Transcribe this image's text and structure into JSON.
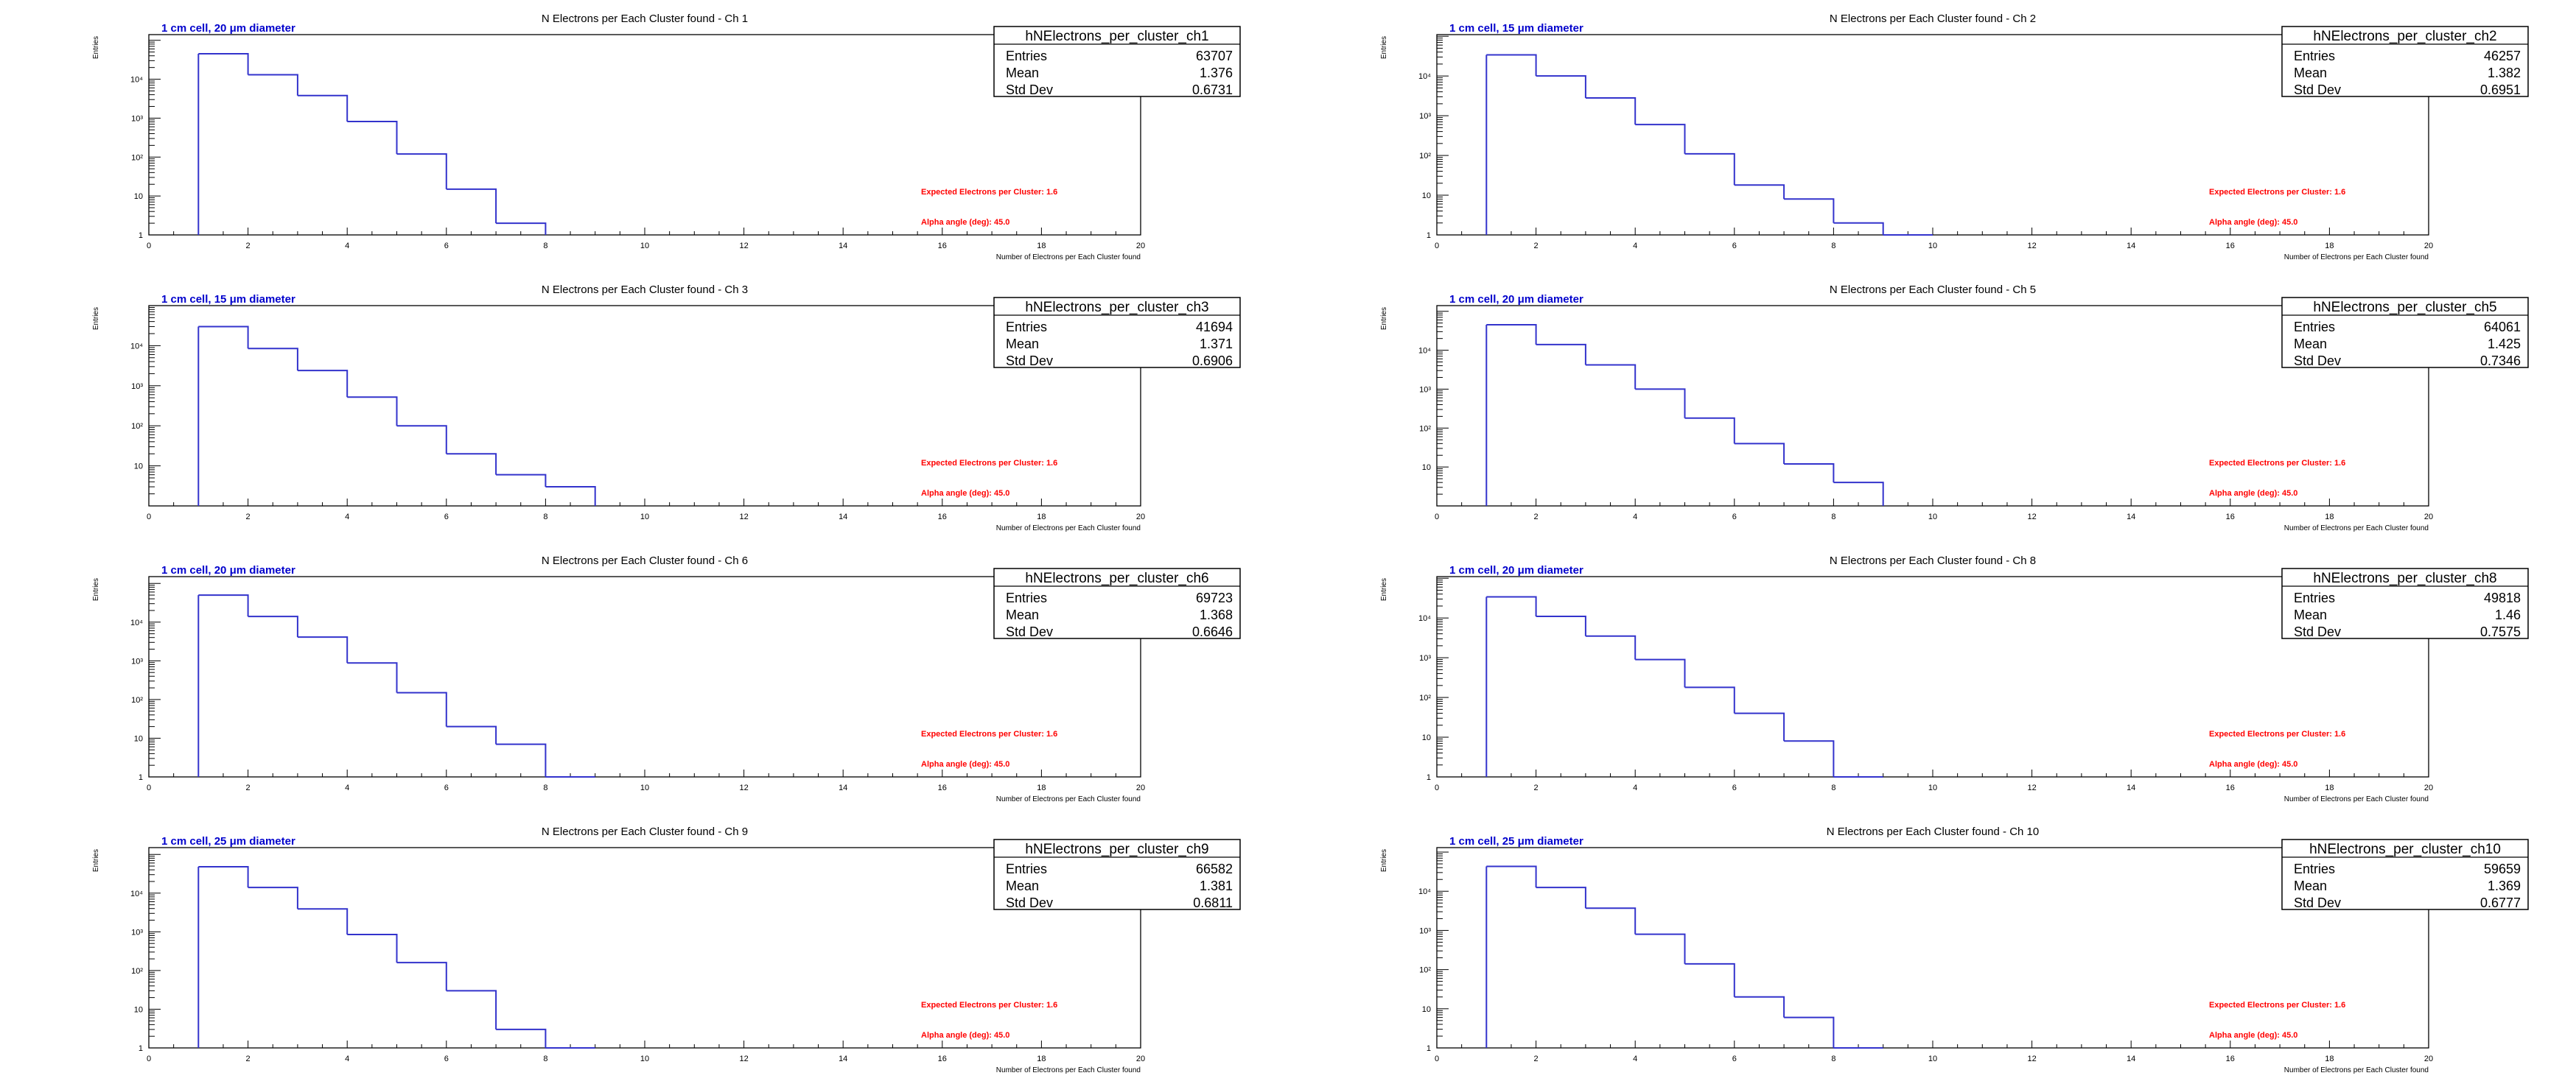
{
  "colors": {
    "histogram": "#3333cc",
    "cell_label": "#0000cc",
    "annotation": "#ff0000",
    "axis": "#000000"
  },
  "chart_data": [
    {
      "type": "histogram",
      "title": "N Electrons per Each Cluster found - Ch 1",
      "cell_label_pre": "1 cm cell, 20 ",
      "cell_label_mu": "μ",
      "cell_label_post": "m diameter",
      "xlabel": "Number of Electrons per Each Cluster found",
      "ylabel": "Entries",
      "xlim": [
        0,
        20
      ],
      "ylog": true,
      "ylim": [
        1,
        140000
      ],
      "xticks": [
        "0",
        "2",
        "4",
        "6",
        "8",
        "10",
        "12",
        "14",
        "16",
        "18",
        "20"
      ],
      "yticks": [
        {
          "value": 1,
          "label": "1"
        },
        {
          "value": 10,
          "label": "10"
        },
        {
          "value": 100,
          "label": "10²"
        },
        {
          "value": 1000,
          "label": "10³"
        },
        {
          "value": 10000,
          "label": "10⁴"
        }
      ],
      "bin_edges": [
        1,
        2,
        3,
        4,
        5,
        6,
        7,
        8
      ],
      "values": [
        45000,
        13000,
        3800,
        820,
        120,
        15,
        2
      ],
      "stats": {
        "name": "hNElectrons_per_cluster_ch1",
        "rows": [
          {
            "label": "Entries",
            "value": "63707"
          },
          {
            "label": "Mean",
            "value": "1.376"
          },
          {
            "label": "Std Dev",
            "value": "0.6731"
          }
        ]
      },
      "annotations": [
        "Expected Electrons per Cluster: 1.6",
        "Alpha angle (deg): 45.0"
      ]
    },
    {
      "type": "histogram",
      "title": "N Electrons per Each Cluster found - Ch 2",
      "cell_label_pre": "1 cm cell, 15 ",
      "cell_label_mu": "μ",
      "cell_label_post": "m diameter",
      "xlabel": "Number of Electrons per Each Cluster found",
      "ylabel": "Entries",
      "xlim": [
        0,
        20
      ],
      "ylog": true,
      "ylim": [
        1,
        110000
      ],
      "xticks": [
        "0",
        "2",
        "4",
        "6",
        "8",
        "10",
        "12",
        "14",
        "16",
        "18",
        "20"
      ],
      "yticks": [
        {
          "value": 1,
          "label": "1"
        },
        {
          "value": 10,
          "label": "10"
        },
        {
          "value": 100,
          "label": "10²"
        },
        {
          "value": 1000,
          "label": "10³"
        },
        {
          "value": 10000,
          "label": "10⁴"
        }
      ],
      "bin_edges": [
        1,
        2,
        3,
        4,
        5,
        6,
        7,
        8,
        9,
        10
      ],
      "values": [
        34000,
        10000,
        2800,
        600,
        110,
        18,
        8,
        2,
        1
      ],
      "stats": {
        "name": "hNElectrons_per_cluster_ch2",
        "rows": [
          {
            "label": "Entries",
            "value": "46257"
          },
          {
            "label": "Mean",
            "value": "1.382"
          },
          {
            "label": "Std Dev",
            "value": "0.6951"
          }
        ]
      },
      "annotations": [
        "Expected Electrons per Cluster: 1.6",
        "Alpha angle (deg): 45.0"
      ]
    },
    {
      "type": "histogram",
      "title": "N Electrons per Each Cluster found - Ch 3",
      "cell_label_pre": "1 cm cell, 15 ",
      "cell_label_mu": "μ",
      "cell_label_post": "m diameter",
      "xlabel": "Number of Electrons per Each Cluster found",
      "ylabel": "Entries",
      "xlim": [
        0,
        20
      ],
      "ylog": true,
      "ylim": [
        1,
        100000
      ],
      "xticks": [
        "0",
        "2",
        "4",
        "6",
        "8",
        "10",
        "12",
        "14",
        "16",
        "18",
        "20"
      ],
      "yticks": [
        {
          "value": 10,
          "label": "10"
        },
        {
          "value": 100,
          "label": "10²"
        },
        {
          "value": 1000,
          "label": "10³"
        },
        {
          "value": 10000,
          "label": "10⁴"
        }
      ],
      "bin_edges": [
        1,
        2,
        3,
        4,
        5,
        6,
        7,
        8,
        9
      ],
      "values": [
        30000,
        8500,
        2400,
        520,
        100,
        20,
        6,
        3
      ],
      "stats": {
        "name": "hNElectrons_per_cluster_ch3",
        "rows": [
          {
            "label": "Entries",
            "value": "41694"
          },
          {
            "label": "Mean",
            "value": "1.371"
          },
          {
            "label": "Std Dev",
            "value": "0.6906"
          }
        ]
      },
      "annotations": [
        "Expected Electrons per Cluster: 1.6",
        "Alpha angle (deg): 45.0"
      ]
    },
    {
      "type": "histogram",
      "title": "N Electrons per Each Cluster found - Ch 5",
      "cell_label_pre": "1 cm cell, 20 ",
      "cell_label_mu": "μ",
      "cell_label_post": "m diameter",
      "xlabel": "Number of Electrons per Each Cluster found",
      "ylabel": "Entries",
      "xlim": [
        0,
        20
      ],
      "ylog": true,
      "ylim": [
        1,
        140000
      ],
      "xticks": [
        "0",
        "2",
        "4",
        "6",
        "8",
        "10",
        "12",
        "14",
        "16",
        "18",
        "20"
      ],
      "yticks": [
        {
          "value": 10,
          "label": "10"
        },
        {
          "value": 100,
          "label": "10²"
        },
        {
          "value": 1000,
          "label": "10³"
        },
        {
          "value": 10000,
          "label": "10⁴"
        }
      ],
      "bin_edges": [
        1,
        2,
        3,
        4,
        5,
        6,
        7,
        8,
        9
      ],
      "values": [
        45000,
        14000,
        4200,
        1000,
        180,
        40,
        12,
        4
      ],
      "stats": {
        "name": "hNElectrons_per_cluster_ch5",
        "rows": [
          {
            "label": "Entries",
            "value": "64061"
          },
          {
            "label": "Mean",
            "value": "1.425"
          },
          {
            "label": "Std Dev",
            "value": "0.7346"
          }
        ]
      },
      "annotations": [
        "Expected Electrons per Cluster: 1.6",
        "Alpha angle (deg): 45.0"
      ]
    },
    {
      "type": "histogram",
      "title": "N Electrons per Each Cluster found - Ch 6",
      "cell_label_pre": "1 cm cell, 20 ",
      "cell_label_mu": "μ",
      "cell_label_post": "m diameter",
      "xlabel": "Number of Electrons per Each Cluster found",
      "ylabel": "Entries",
      "xlim": [
        0,
        20
      ],
      "ylog": true,
      "ylim": [
        1,
        150000
      ],
      "xticks": [
        "0",
        "2",
        "4",
        "6",
        "8",
        "10",
        "12",
        "14",
        "16",
        "18",
        "20"
      ],
      "yticks": [
        {
          "value": 1,
          "label": "1"
        },
        {
          "value": 10,
          "label": "10"
        },
        {
          "value": 100,
          "label": "10²"
        },
        {
          "value": 1000,
          "label": "10³"
        },
        {
          "value": 10000,
          "label": "10⁴"
        }
      ],
      "bin_edges": [
        1,
        2,
        3,
        4,
        5,
        6,
        7,
        8,
        9
      ],
      "values": [
        50000,
        14000,
        4100,
        880,
        150,
        20,
        7,
        1
      ],
      "stats": {
        "name": "hNElectrons_per_cluster_ch6",
        "rows": [
          {
            "label": "Entries",
            "value": "69723"
          },
          {
            "label": "Mean",
            "value": "1.368"
          },
          {
            "label": "Std Dev",
            "value": "0.6646"
          }
        ]
      },
      "annotations": [
        "Expected Electrons per Cluster: 1.6",
        "Alpha angle (deg): 45.0"
      ]
    },
    {
      "type": "histogram",
      "title": "N Electrons per Each Cluster found - Ch 8",
      "cell_label_pre": "1 cm cell, 20 ",
      "cell_label_mu": "μ",
      "cell_label_post": "m diameter",
      "xlabel": "Number of Electrons per Each Cluster found",
      "ylabel": "Entries",
      "xlim": [
        0,
        20
      ],
      "ylog": true,
      "ylim": [
        1,
        110000
      ],
      "xticks": [
        "0",
        "2",
        "4",
        "6",
        "8",
        "10",
        "12",
        "14",
        "16",
        "18",
        "20"
      ],
      "yticks": [
        {
          "value": 1,
          "label": "1"
        },
        {
          "value": 10,
          "label": "10"
        },
        {
          "value": 100,
          "label": "10²"
        },
        {
          "value": 1000,
          "label": "10³"
        },
        {
          "value": 10000,
          "label": "10⁴"
        }
      ],
      "bin_edges": [
        1,
        2,
        3,
        4,
        5,
        6,
        7,
        8,
        9
      ],
      "values": [
        34000,
        11000,
        3500,
        900,
        180,
        40,
        8,
        1
      ],
      "stats": {
        "name": "hNElectrons_per_cluster_ch8",
        "rows": [
          {
            "label": "Entries",
            "value": "49818"
          },
          {
            "label": "Mean",
            "value": "1.46"
          },
          {
            "label": "Std Dev",
            "value": "0.7575"
          }
        ]
      },
      "annotations": [
        "Expected Electrons per Cluster: 1.6",
        "Alpha angle (deg): 45.0"
      ]
    },
    {
      "type": "histogram",
      "title": "N Electrons per Each Cluster found - Ch 9",
      "cell_label_pre": "1 cm cell, 25 ",
      "cell_label_mu": "μ",
      "cell_label_post": "m diameter",
      "xlabel": "Number of Electrons per Each Cluster found",
      "ylabel": "Entries",
      "xlim": [
        0,
        20
      ],
      "ylog": true,
      "ylim": [
        1,
        150000
      ],
      "xticks": [
        "0",
        "2",
        "4",
        "6",
        "8",
        "10",
        "12",
        "14",
        "16",
        "18",
        "20"
      ],
      "yticks": [
        {
          "value": 1,
          "label": "1"
        },
        {
          "value": 10,
          "label": "10"
        },
        {
          "value": 100,
          "label": "10²"
        },
        {
          "value": 1000,
          "label": "10³"
        },
        {
          "value": 10000,
          "label": "10⁴"
        }
      ],
      "bin_edges": [
        1,
        2,
        3,
        4,
        5,
        6,
        7,
        8,
        9
      ],
      "values": [
        48000,
        14000,
        3900,
        850,
        160,
        30,
        3,
        1
      ],
      "stats": {
        "name": "hNElectrons_per_cluster_ch9",
        "rows": [
          {
            "label": "Entries",
            "value": "66582"
          },
          {
            "label": "Mean",
            "value": "1.381"
          },
          {
            "label": "Std Dev",
            "value": "0.6811"
          }
        ]
      },
      "annotations": [
        "Expected Electrons per Cluster: 1.6",
        "Alpha angle (deg): 45.0"
      ]
    },
    {
      "type": "histogram",
      "title": "N Electrons per Each Cluster found - Ch 10",
      "cell_label_pre": "1 cm cell, 25 ",
      "cell_label_mu": "μ",
      "cell_label_post": "m diameter",
      "xlabel": "Number of Electrons per Each Cluster found",
      "ylabel": "Entries",
      "xlim": [
        0,
        20
      ],
      "ylog": true,
      "ylim": [
        1,
        130000
      ],
      "xticks": [
        "0",
        "2",
        "4",
        "6",
        "8",
        "10",
        "12",
        "14",
        "16",
        "18",
        "20"
      ],
      "yticks": [
        {
          "value": 1,
          "label": "1"
        },
        {
          "value": 10,
          "label": "10"
        },
        {
          "value": 100,
          "label": "10²"
        },
        {
          "value": 1000,
          "label": "10³"
        },
        {
          "value": 10000,
          "label": "10⁴"
        }
      ],
      "bin_edges": [
        1,
        2,
        3,
        4,
        5,
        6,
        7,
        8,
        9
      ],
      "values": [
        43000,
        12500,
        3700,
        800,
        140,
        20,
        6,
        1
      ],
      "stats": {
        "name": "hNElectrons_per_cluster_ch10",
        "rows": [
          {
            "label": "Entries",
            "value": "59659"
          },
          {
            "label": "Mean",
            "value": "1.369"
          },
          {
            "label": "Std Dev",
            "value": "0.6777"
          }
        ]
      },
      "annotations": [
        "Expected Electrons per Cluster: 1.6",
        "Alpha angle (deg): 45.0"
      ]
    }
  ]
}
